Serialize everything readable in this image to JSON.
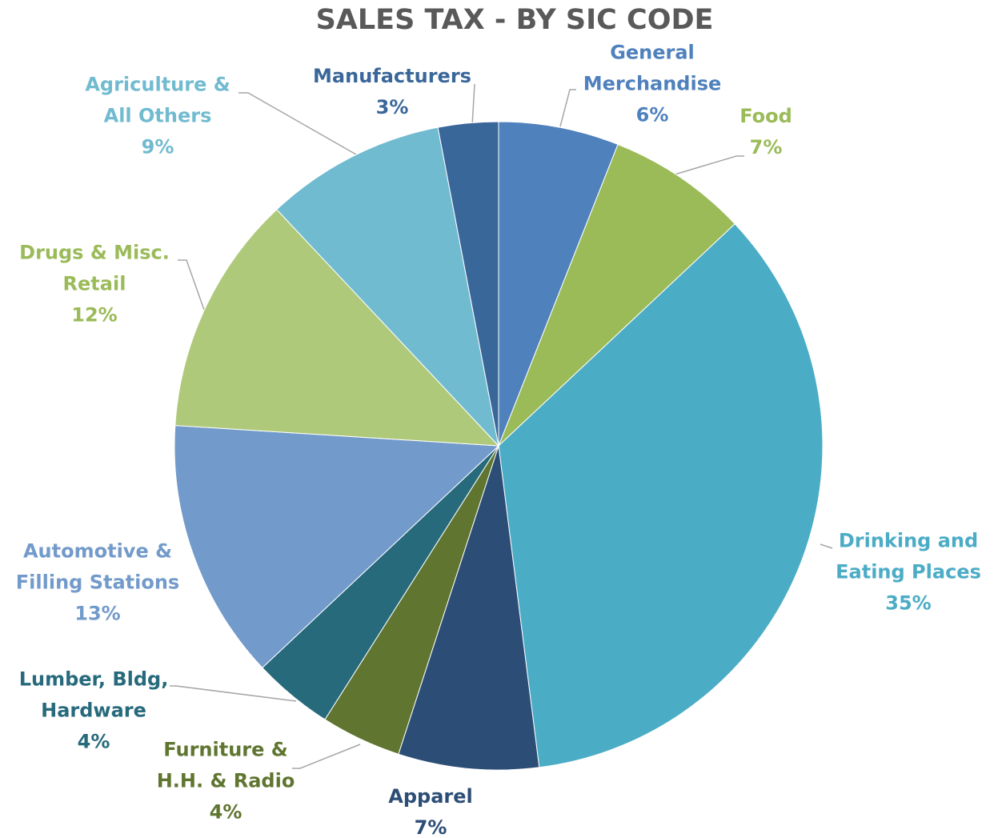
{
  "chart_data": {
    "type": "pie",
    "title": "SALES TAX - BY SIC CODE",
    "categories": [
      "General Merchandise",
      "Food",
      "Drinking and Eating Places",
      "Apparel",
      "Furniture & H.H. & Radio",
      "Lumber, Bldg, Hardware",
      "Automotive & Filling Stations",
      "Drugs & Misc. Retail",
      "Agriculture & All Others",
      "Manufacturers"
    ],
    "values": [
      6,
      7,
      35,
      7,
      4,
      4,
      13,
      12,
      9,
      3
    ],
    "value_labels": [
      "6%",
      "7%",
      "35%",
      "7%",
      "4%",
      "4%",
      "13%",
      "12%",
      "9%",
      "3%"
    ],
    "colors": [
      "#4f81bd",
      "#9bbb59",
      "#4bacc6",
      "#2c4d75",
      "#5f7530",
      "#276a7c",
      "#729aca",
      "#afc97a",
      "#71bbd0",
      "#3a6799"
    ]
  }
}
